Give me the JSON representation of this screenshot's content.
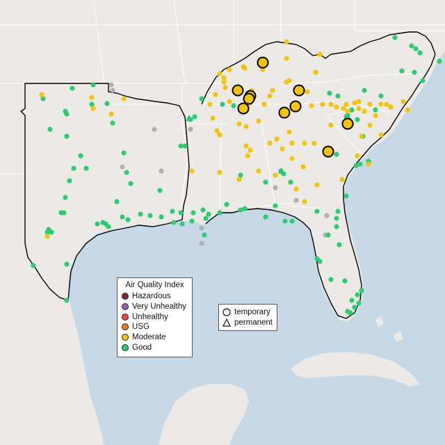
{
  "legend": {
    "title": "Air Quality Index",
    "items": [
      {
        "label": "Hazardous",
        "color": "#7e2c2c"
      },
      {
        "label": "Very Unhealthy",
        "color": "#9b59b6"
      },
      {
        "label": "Unhealthy",
        "color": "#e74c3c"
      },
      {
        "label": "USG",
        "color": "#e67e22"
      },
      {
        "label": "Moderate",
        "color": "#f1c40f"
      },
      {
        "label": "Good",
        "color": "#2ecc71"
      }
    ]
  },
  "shape_legend": {
    "items": [
      {
        "label": "temporary",
        "icon": "circle-icon"
      },
      {
        "label": "permanent",
        "icon": "triangle-icon"
      }
    ]
  },
  "colors": {
    "water": "#c7d9e6",
    "land": "#ece9e6",
    "border": "#ffffff",
    "highlight_outline": "#000000",
    "good": "#2ecc71",
    "moderate": "#f1c40f",
    "no_data": "#b0b0b0"
  }
}
